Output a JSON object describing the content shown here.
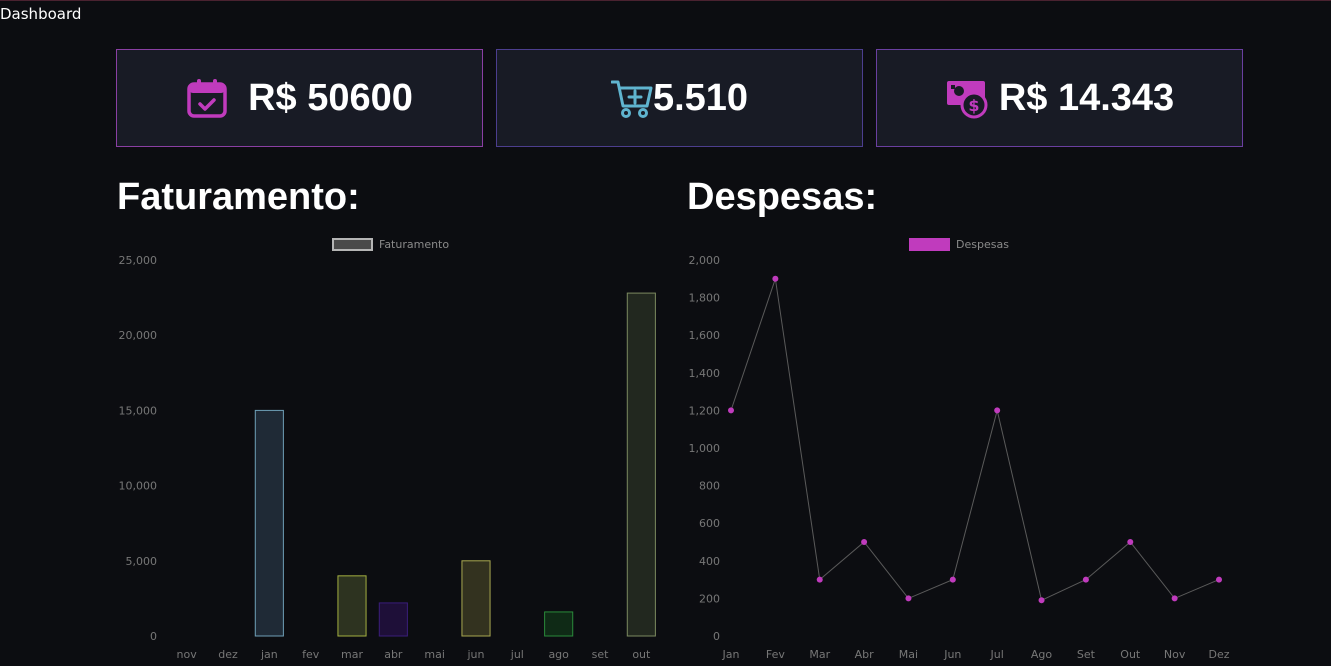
{
  "app": {
    "title": "Dashboard"
  },
  "cards": [
    {
      "value": "R$ 50600",
      "icon": "calendar-check-icon",
      "color": "#c03bbd"
    },
    {
      "value": "5.510",
      "icon": "cart-plus-icon",
      "color": "#5fb4cf"
    },
    {
      "value": "R$ 14.343",
      "icon": "money-bill-icon",
      "color": "#c03bbd"
    }
  ],
  "sections": {
    "revenue_title": "Faturamento:",
    "expenses_title": "Despesas:"
  },
  "chart_data": [
    {
      "type": "bar",
      "legend_position": "top",
      "categories": [
        "nov",
        "dez",
        "jan",
        "fev",
        "mar",
        "abr",
        "mai",
        "jun",
        "jul",
        "ago",
        "set",
        "out"
      ],
      "series": [
        {
          "name": "Faturamento",
          "values": [
            0,
            0,
            15000,
            0,
            4000,
            2200,
            0,
            5000,
            0,
            1600,
            0,
            22800
          ],
          "fill_colors": [
            "#1f2a36",
            "#1f2a36",
            "#1f2a36",
            "#1f2a36",
            "#2d3320",
            "#1e0f38",
            "#1f2a36",
            "#33321f",
            "#1f2a36",
            "#0f2a16",
            "#1f2a36",
            "#22281f"
          ],
          "border_colors": [
            "#6fa0b8",
            "#6fa0b8",
            "#6fa0b8",
            "#6fa0b8",
            "#a4b040",
            "#3a1e7a",
            "#6fa0b8",
            "#a8a850",
            "#6fa0b8",
            "#2a8a3a",
            "#6fa0b8",
            "#7c8a60"
          ]
        }
      ],
      "legend_swatch": {
        "fill": "#4a4a4a",
        "border": "#b5b5b5"
      },
      "ylim": [
        0,
        25000
      ],
      "yticks": [
        0,
        5000,
        10000,
        15000,
        20000,
        25000
      ],
      "ytick_labels": [
        "0",
        "5,000",
        "10,000",
        "15,000",
        "20,000",
        "25,000"
      ],
      "grid": false
    },
    {
      "type": "line",
      "legend_position": "top",
      "categories": [
        "Jan",
        "Fev",
        "Mar",
        "Abr",
        "Mai",
        "Jun",
        "Jul",
        "Ago",
        "Set",
        "Out",
        "Nov",
        "Dez"
      ],
      "series": [
        {
          "name": "Despesas",
          "values": [
            1200,
            1900,
            300,
            500,
            200,
            300,
            1200,
            190,
            300,
            500,
            200,
            300
          ],
          "point_color": "#c03bbd",
          "line_color": "#5a5a5a"
        }
      ],
      "ylim": [
        0,
        2000
      ],
      "yticks": [
        0,
        200,
        400,
        600,
        800,
        1000,
        1200,
        1400,
        1600,
        1800,
        2000
      ],
      "ytick_labels": [
        "0",
        "200",
        "400",
        "600",
        "800",
        "1,000",
        "1,200",
        "1,400",
        "1,600",
        "1,800",
        "2,000"
      ],
      "grid": false
    }
  ]
}
